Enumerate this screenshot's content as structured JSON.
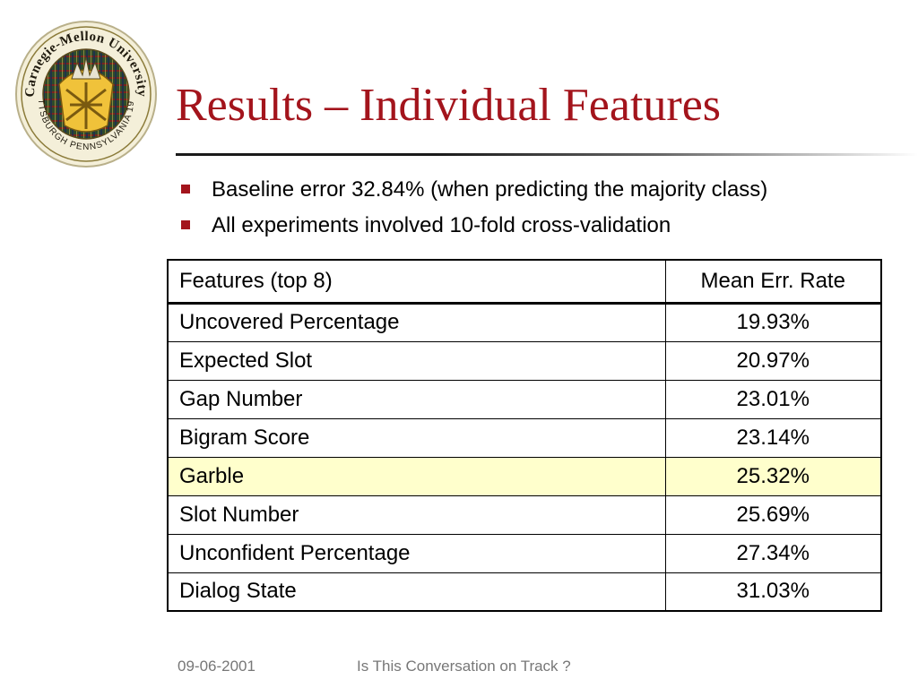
{
  "logo": {
    "text_top": "Carnegie-Mellon University",
    "text_bottom": "PITTSBURGH PENNSYLVANIA 1900"
  },
  "title": "Results – Individual Features",
  "bullets": [
    "Baseline error 32.84% (when predicting the majority class)",
    "All experiments involved 10-fold cross-validation"
  ],
  "table": {
    "headers": [
      "Features (top 8)",
      "Mean Err. Rate"
    ],
    "rows": [
      {
        "feature": "Uncovered Percentage",
        "rate": "19.93%"
      },
      {
        "feature": "Expected Slot",
        "rate": "20.97%"
      },
      {
        "feature": "Gap Number",
        "rate": "23.01%"
      },
      {
        "feature": "Bigram Score",
        "rate": "23.14%"
      },
      {
        "feature": "Garble",
        "rate": "25.32%"
      },
      {
        "feature": "Slot Number",
        "rate": "25.69%"
      },
      {
        "feature": "Unconfident Percentage",
        "rate": "27.34%"
      },
      {
        "feature": "Dialog State",
        "rate": "31.03%"
      }
    ]
  },
  "footer": {
    "date": "09-06-2001",
    "title": "Is This Conversation on Track ?"
  },
  "colors": {
    "title": "#a3141c",
    "bullet_marker": "#a3141c",
    "highlight_row": "#ffffcc",
    "footer_text": "#777777"
  }
}
